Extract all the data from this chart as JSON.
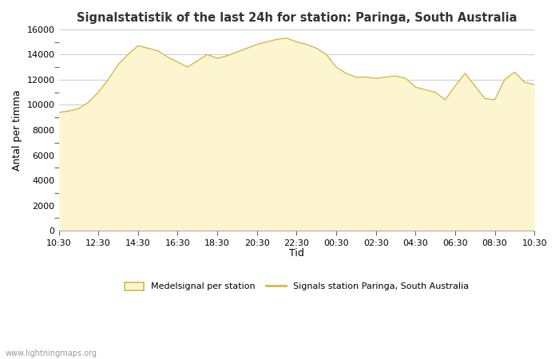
{
  "title": "Signalstatistik of the last 24h for station: Paringa, South Australia",
  "xlabel": "Tid",
  "ylabel": "Antal per timma",
  "watermark": "www.lightningmaps.org",
  "fill_color": "#fdf5d0",
  "line_color": "#d4b84a",
  "background_color": "#ffffff",
  "grid_color": "#cccccc",
  "ylim": [
    0,
    16000
  ],
  "yticks": [
    0,
    2000,
    4000,
    6000,
    8000,
    10000,
    12000,
    14000,
    16000
  ],
  "xtick_labels": [
    "10:30",
    "12:30",
    "14:30",
    "16:30",
    "18:30",
    "20:30",
    "22:30",
    "00:30",
    "02:30",
    "04:30",
    "06:30",
    "08:30",
    "10:30"
  ],
  "legend_fill_label": "Medelsignal per station",
  "legend_line_label": "Signals station Paringa, South Australia",
  "y_values": [
    9400,
    9500,
    9700,
    10200,
    11000,
    12000,
    13200,
    14000,
    14700,
    14500,
    14300,
    13800,
    13400,
    13000,
    13500,
    14000,
    13700,
    13900,
    14200,
    14500,
    14800,
    15000,
    15200,
    15300,
    15000,
    14800,
    14500,
    14000,
    13000,
    12500,
    12200,
    12200,
    12100,
    12200,
    12300,
    12100,
    11400,
    11200,
    11000,
    10400,
    11500,
    12500,
    11500,
    10500,
    10400,
    12000,
    12600,
    11800,
    11600
  ]
}
